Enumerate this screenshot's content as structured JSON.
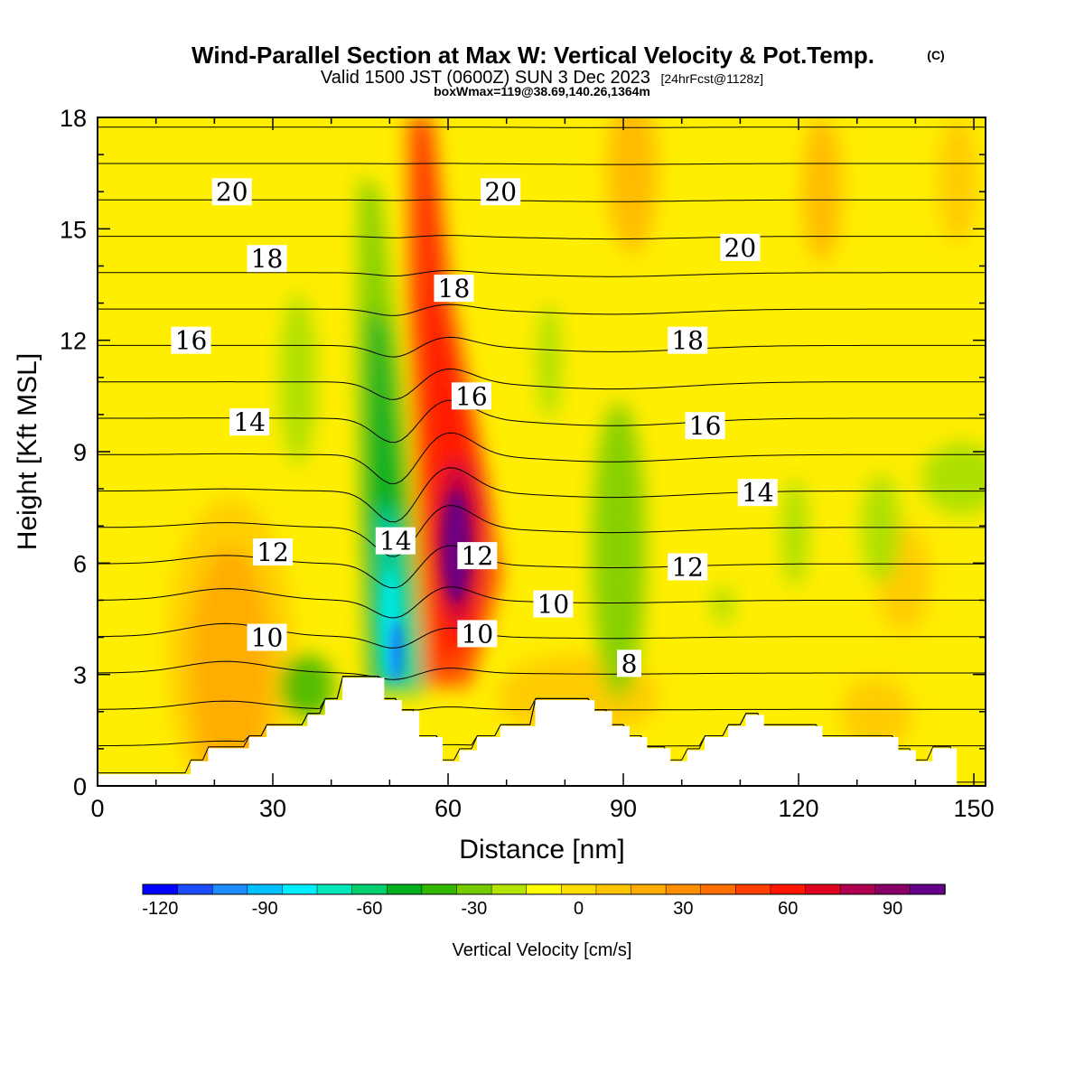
{
  "chart_data": {
    "type": "heatmap",
    "title": "Wind-Parallel Section at Max W: Vertical Velocity & Pot.Temp.",
    "title_mark": "(C)",
    "subtitle_main": "Valid 1500 JST (0600Z) SUN 3 Dec 2023",
    "subtitle_note": "[24hrFcst@1128z]",
    "subtitle2": "boxWmax=119@38.69,140.26,1364m",
    "xlabel": "Distance [nm]",
    "ylabel": "Height [Kft MSL]",
    "xlim": [
      0,
      152
    ],
    "ylim": [
      0,
      18
    ],
    "x_ticks": [
      "0",
      "30",
      "60",
      "90",
      "120",
      "150"
    ],
    "y_ticks": [
      "0",
      "3",
      "6",
      "9",
      "12",
      "15",
      "18"
    ],
    "colorbar": {
      "label": "Vertical Velocity [cm/s]",
      "min": -120,
      "max": 110,
      "step": 10,
      "tick_labels": [
        "-120",
        "-90",
        "-60",
        "-30",
        "0",
        "30",
        "60",
        "90"
      ],
      "colors": [
        "#0000ff",
        "#1c4bff",
        "#1e8cff",
        "#00c0ff",
        "#00efff",
        "#00e8b8",
        "#00d070",
        "#00b020",
        "#33b800",
        "#77cc00",
        "#b4e400",
        "#ffff00",
        "#ffdd00",
        "#ffc400",
        "#ffab00",
        "#ff8f00",
        "#ff6e00",
        "#ff4000",
        "#ff1400",
        "#e00020",
        "#b00050",
        "#880068",
        "#660088"
      ]
    },
    "shaded_field": {
      "variable": "vertical velocity",
      "units": "cm/s",
      "features": [
        {
          "kind": "updraft",
          "x": 61,
          "z": 6.5,
          "peak": 110
        },
        {
          "kind": "downdraft",
          "x": 51,
          "z": 4.5,
          "peak": -120
        },
        {
          "kind": "weak updraft",
          "x": 20,
          "z": 3.5,
          "peak": 40
        },
        {
          "kind": "weak downdraft",
          "x": 88,
          "z": 6,
          "peak": -40
        }
      ]
    },
    "contours": {
      "variable": "potential temperature",
      "levels": [
        4,
        5,
        6,
        7,
        8,
        9,
        10,
        11,
        12,
        13,
        14,
        15,
        16,
        17,
        18,
        19,
        20,
        21,
        22
      ],
      "labels": [
        {
          "text": "20",
          "x": 23,
          "z": 16.0
        },
        {
          "text": "20",
          "x": 69,
          "z": 16.0
        },
        {
          "text": "20",
          "x": 110,
          "z": 14.5
        },
        {
          "text": "18",
          "x": 29,
          "z": 14.2
        },
        {
          "text": "18",
          "x": 61,
          "z": 13.4
        },
        {
          "text": "18",
          "x": 101,
          "z": 12.0
        },
        {
          "text": "16",
          "x": 16,
          "z": 12.0
        },
        {
          "text": "16",
          "x": 64,
          "z": 10.5
        },
        {
          "text": "16",
          "x": 104,
          "z": 9.7
        },
        {
          "text": "14",
          "x": 26,
          "z": 9.8
        },
        {
          "text": "14",
          "x": 51,
          "z": 6.6
        },
        {
          "text": "14",
          "x": 113,
          "z": 7.9
        },
        {
          "text": "12",
          "x": 30,
          "z": 6.3
        },
        {
          "text": "12",
          "x": 65,
          "z": 6.2
        },
        {
          "text": "12",
          "x": 101,
          "z": 5.9
        },
        {
          "text": "10",
          "x": 29,
          "z": 4.0
        },
        {
          "text": "10",
          "x": 65,
          "z": 4.1
        },
        {
          "text": "10",
          "x": 78,
          "z": 4.9
        },
        {
          "text": "8",
          "x": 91,
          "z": 3.3
        }
      ]
    },
    "terrain": {
      "x": [
        0,
        16,
        16,
        19,
        19,
        26,
        26,
        29,
        29,
        36,
        36,
        39,
        39,
        42,
        42,
        49,
        49,
        52,
        52,
        55,
        55,
        59,
        59,
        62,
        62,
        65,
        65,
        69,
        69,
        75,
        75,
        85,
        85,
        88,
        88,
        91,
        91,
        94,
        94,
        98,
        98,
        101,
        101,
        104,
        104,
        108,
        108,
        111,
        111,
        114,
        114,
        118,
        118,
        124,
        124,
        137,
        137,
        140,
        140,
        143,
        143,
        147,
        147,
        152
      ],
      "z": [
        0.3,
        0.3,
        0.65,
        0.65,
        1.0,
        1.0,
        1.3,
        1.3,
        1.6,
        1.6,
        1.9,
        1.9,
        2.3,
        2.3,
        2.9,
        2.9,
        2.3,
        2.3,
        2.0,
        2.0,
        1.3,
        1.3,
        0.65,
        0.65,
        0.95,
        0.95,
        1.3,
        1.3,
        1.6,
        1.6,
        2.3,
        2.3,
        2.0,
        2.0,
        1.6,
        1.6,
        1.3,
        1.3,
        1.0,
        1.0,
        0.65,
        0.65,
        0.95,
        0.95,
        1.3,
        1.3,
        1.6,
        1.6,
        1.9,
        1.9,
        1.6,
        1.6,
        1.6,
        1.6,
        1.3,
        1.3,
        0.95,
        0.95,
        0.65,
        0.65,
        1.0,
        1.0,
        0.0,
        0.0
      ]
    }
  }
}
